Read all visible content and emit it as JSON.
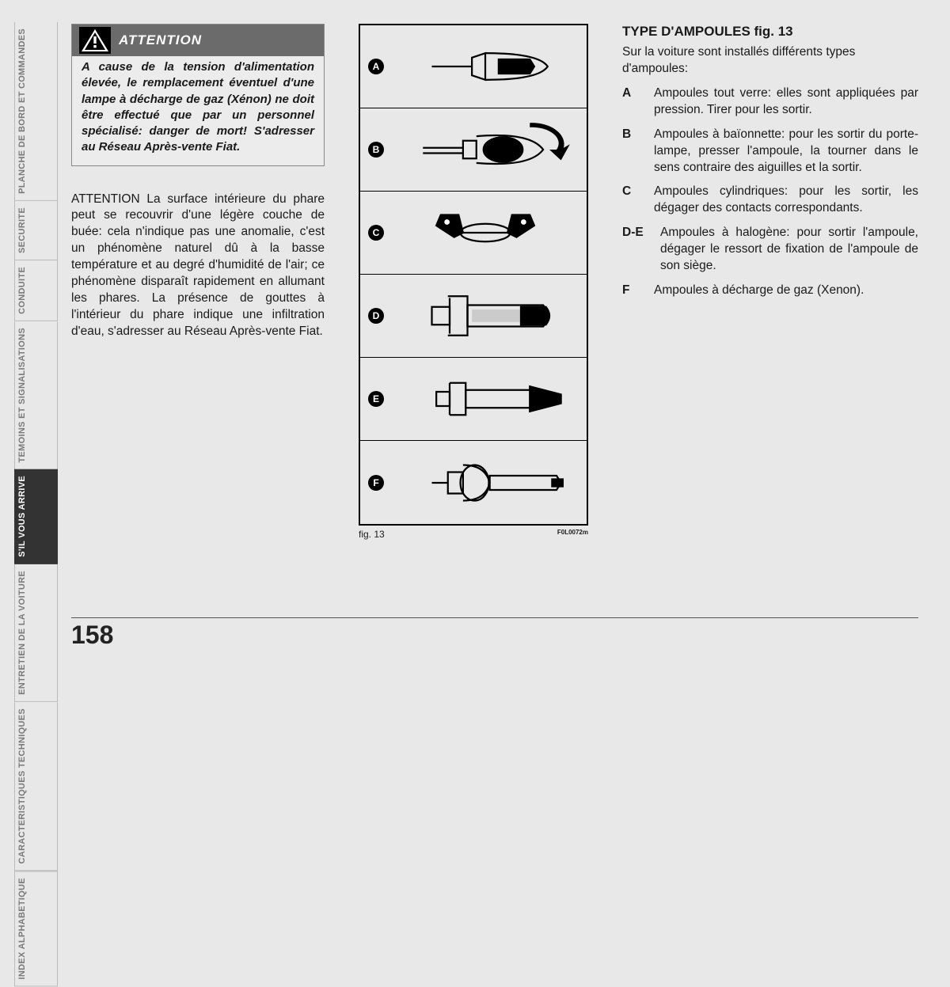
{
  "side_tabs": [
    {
      "label": "PLANCHE DE BORD ET COMMANDES",
      "active": false
    },
    {
      "label": "SECURITE",
      "active": false
    },
    {
      "label": "CONDUITE",
      "active": false
    },
    {
      "label": "TEMOINS ET SIGNALISATIONS",
      "active": false
    },
    {
      "label": "S'IL VOUS ARRIVE",
      "active": true
    },
    {
      "label": "ENTRETIEN DE LA VOITURE",
      "active": false
    },
    {
      "label": "CARACTERISTIQUES TECHNIQUES",
      "active": false
    },
    {
      "label": "INDEX ALPHABETIQUE",
      "active": false
    }
  ],
  "attention": {
    "title": "ATTENTION",
    "text": "A cause de la tension d'alimentation élevée, le remplacement éventuel d'une lampe à décharge de gaz (Xénon) ne doit être effectué que par un personnel spécialisé: danger de mort! S'adresser au Réseau Après-vente Fiat."
  },
  "paragraph": "ATTENTION La surface intérieure du phare peut se recouvrir d'une légère couche de buée: cela n'indique pas une anomalie, c'est un phénomène naturel dû à la basse température et au degré d'humidité de l'air; ce phénomène disparaît rapidement en allumant les phares. La présence de gouttes à l'intérieur du phare indique une infiltration d'eau, s'adresser au Réseau Après-vente Fiat.",
  "figure": {
    "rows": [
      "A",
      "B",
      "C",
      "D",
      "E",
      "F"
    ],
    "caption": "fig. 13",
    "code": "F0L0072m"
  },
  "right": {
    "title": "TYPE D'AMPOULES fig. 13",
    "intro": "Sur la voiture sont installés différents types d'ampoules:",
    "defs": [
      {
        "k": "A",
        "t": "Ampoules tout verre: elles sont appliquées par pression. Tirer pour les sortir."
      },
      {
        "k": "B",
        "t": "Ampoules à baïonnette: pour les sortir du porte-lampe, presser l'ampoule, la tourner dans le sens contraire des aiguilles et la sortir."
      },
      {
        "k": "C",
        "t": "Ampoules cylindriques: pour les sortir, les dégager des contacts correspondants."
      },
      {
        "k": "D-E",
        "t": "Ampoules à halogène: pour sortir l'ampoule, dégager le ressort de fixation de l'ampoule de son siège."
      },
      {
        "k": "F",
        "t": "Ampoules à décharge de gaz (Xenon)."
      }
    ]
  },
  "page_number": "158"
}
